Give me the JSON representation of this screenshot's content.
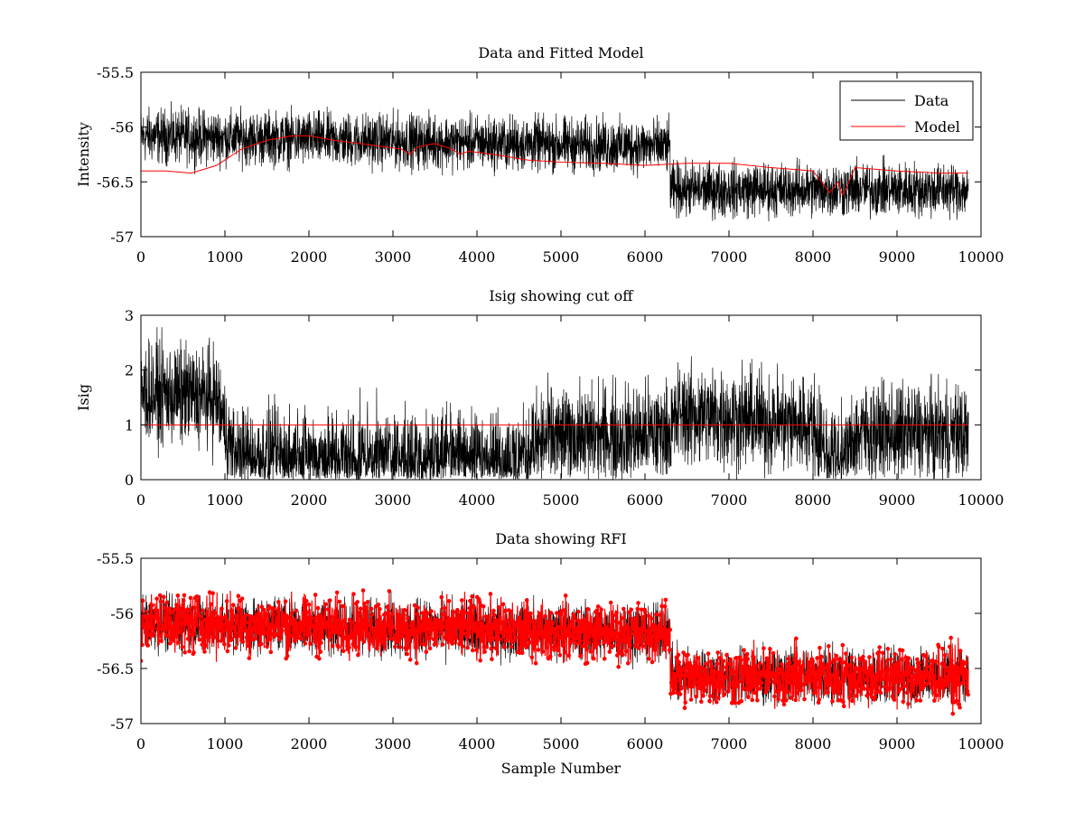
{
  "chart_data": [
    {
      "id": "data-and-fitted-model",
      "type": "line",
      "title": "Data and Fitted Model",
      "xlabel": "",
      "ylabel": "Intensity",
      "xlim": [
        0,
        10000
      ],
      "ylim": [
        -57,
        -55.5
      ],
      "xticks": [
        0,
        1000,
        2000,
        3000,
        4000,
        5000,
        6000,
        7000,
        8000,
        9000,
        10000
      ],
      "yticks": [
        -57,
        -56.5,
        -56,
        -55.5
      ],
      "xtick_labels": [
        "0",
        "1000",
        "2000",
        "3000",
        "4000",
        "5000",
        "6000",
        "7000",
        "8000",
        "9000",
        "10000"
      ],
      "ytick_labels": [
        "-57",
        "-56.5",
        "-56",
        "-55.5"
      ],
      "legend": {
        "location": "top-right",
        "entries": [
          "Data",
          "Model"
        ]
      },
      "series": [
        {
          "name": "Data",
          "color": "#000000",
          "style": "noise-band",
          "n_points": 9850,
          "x": [
            0,
            6300,
            6300,
            9850
          ],
          "mean": [
            -56.08,
            -56.18,
            -56.57,
            -56.57
          ],
          "noise_amplitude": 0.12
        },
        {
          "name": "Model",
          "color": "#ff0000",
          "style": "line",
          "x": [
            0,
            300,
            600,
            900,
            1200,
            1500,
            1800,
            2000,
            2300,
            2600,
            2900,
            3100,
            3200,
            3300,
            3500,
            3700,
            3800,
            3900,
            4200,
            4600,
            5000,
            5500,
            6000,
            6500,
            7000,
            7500,
            8000,
            8100,
            8200,
            8300,
            8350,
            8400,
            8500,
            9000,
            9500,
            9850
          ],
          "values": [
            -56.4,
            -56.4,
            -56.42,
            -56.35,
            -56.2,
            -56.12,
            -56.08,
            -56.08,
            -56.12,
            -56.15,
            -56.18,
            -56.2,
            -56.25,
            -56.18,
            -56.15,
            -56.2,
            -56.25,
            -56.22,
            -56.25,
            -56.3,
            -56.32,
            -56.33,
            -56.35,
            -56.33,
            -56.33,
            -56.37,
            -56.4,
            -56.5,
            -56.6,
            -56.5,
            -56.62,
            -56.55,
            -56.37,
            -56.4,
            -56.42,
            -56.42
          ]
        }
      ]
    },
    {
      "id": "isig-showing-cut-off",
      "type": "line",
      "title": "Isig showing cut off",
      "xlabel": "",
      "ylabel": "Isig",
      "xlim": [
        0,
        10000
      ],
      "ylim": [
        0,
        3
      ],
      "xticks": [
        0,
        1000,
        2000,
        3000,
        4000,
        5000,
        6000,
        7000,
        8000,
        9000,
        10000
      ],
      "yticks": [
        0,
        1,
        2,
        3
      ],
      "xtick_labels": [
        "0",
        "1000",
        "2000",
        "3000",
        "4000",
        "5000",
        "6000",
        "7000",
        "8000",
        "9000",
        "10000"
      ],
      "ytick_labels": [
        "0",
        "1",
        "2",
        "3"
      ],
      "series": [
        {
          "color": "#000000",
          "style": "noise-band",
          "n_points": 9850,
          "x": [
            0,
            900,
            1100,
            4500,
            4800,
            6300,
            6400,
            8000,
            8200,
            8400,
            8500,
            9850
          ],
          "mean": [
            1.6,
            1.5,
            0.4,
            0.35,
            0.75,
            0.85,
            1.2,
            1.0,
            0.35,
            0.35,
            0.85,
            0.8
          ],
          "noise_amplitude": 0.45
        },
        {
          "color": "#ff0000",
          "style": "line",
          "x": [
            0,
            9850
          ],
          "values": [
            1,
            1
          ]
        }
      ]
    },
    {
      "id": "data-showing-rfi",
      "type": "scatter",
      "title": "Data showing RFI",
      "xlabel": "Sample Number",
      "ylabel": "",
      "xlim": [
        0,
        10000
      ],
      "ylim": [
        -57,
        -55.5
      ],
      "xticks": [
        0,
        1000,
        2000,
        3000,
        4000,
        5000,
        6000,
        7000,
        8000,
        9000,
        10000
      ],
      "yticks": [
        -57,
        -56.5,
        -56,
        -55.5
      ],
      "xtick_labels": [
        "0",
        "1000",
        "2000",
        "3000",
        "4000",
        "5000",
        "6000",
        "7000",
        "8000",
        "9000",
        "10000"
      ],
      "ytick_labels": [
        "-57",
        "-56.5",
        "-56",
        "-55.5"
      ],
      "series": [
        {
          "color": "#000000",
          "style": "noise-band",
          "n_points": 9850,
          "x": [
            0,
            6300,
            6300,
            9850
          ],
          "mean": [
            -56.08,
            -56.18,
            -56.57,
            -56.57
          ],
          "noise_amplitude": 0.12
        },
        {
          "color": "#ff0000",
          "style": "markers",
          "n_points": 2600,
          "x": [
            0,
            6300,
            6300,
            9850
          ],
          "mean": [
            -56.08,
            -56.18,
            -56.57,
            -56.57
          ],
          "noise_amplitude": 0.13
        }
      ]
    }
  ]
}
